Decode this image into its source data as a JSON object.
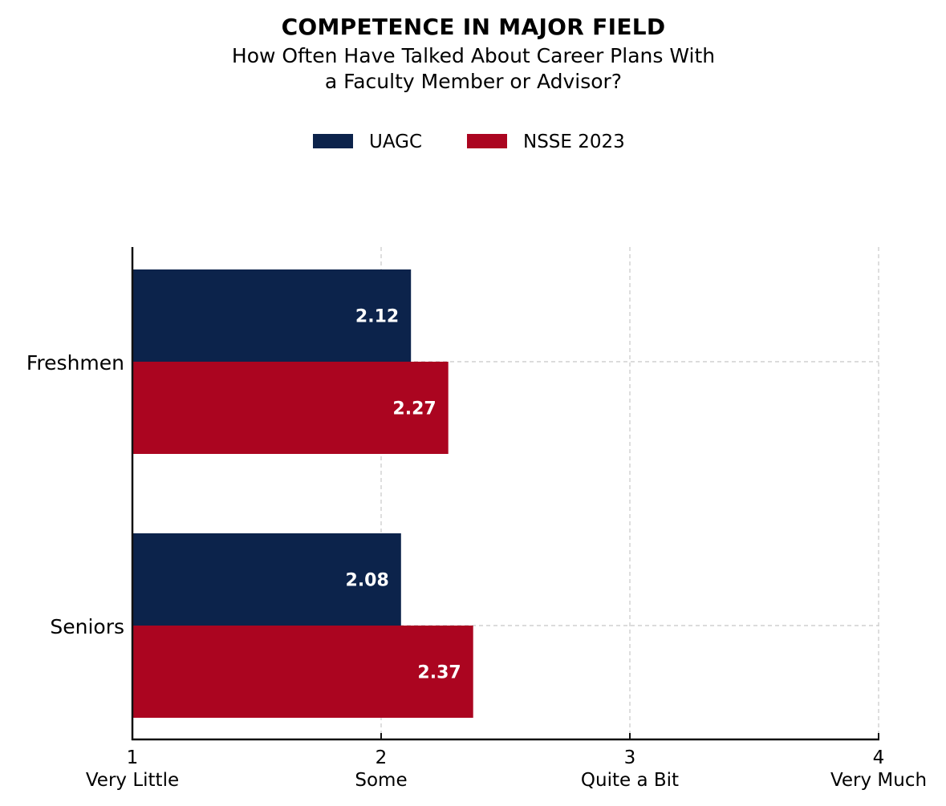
{
  "chart_data": {
    "type": "bar",
    "orientation": "horizontal",
    "title": "COMPETENCE IN MAJOR FIELD",
    "subtitle_lines": [
      "How Often Have Talked About Career Plans With",
      "a Faculty Member or Advisor?"
    ],
    "categories": [
      "Freshmen",
      "Seniors"
    ],
    "series": [
      {
        "name": "UAGC",
        "color": "#0c234b",
        "values": [
          2.12,
          2.08
        ]
      },
      {
        "name": "NSSE 2023",
        "color": "#ab0520",
        "values": [
          2.27,
          2.37
        ]
      }
    ],
    "data_labels": [
      [
        "2.12",
        "2.08"
      ],
      [
        "2.27",
        "2.37"
      ]
    ],
    "xlim": [
      1,
      4
    ],
    "x_ticks": [
      {
        "value": 1,
        "num": "1",
        "text": "Very Little"
      },
      {
        "value": 2,
        "num": "2",
        "text": "Some"
      },
      {
        "value": 3,
        "num": "3",
        "text": "Quite a Bit"
      },
      {
        "value": 4,
        "num": "4",
        "text": "Very Much"
      }
    ],
    "xlabel": "",
    "ylabel": "",
    "grid": true,
    "legend_position": "top-center"
  }
}
